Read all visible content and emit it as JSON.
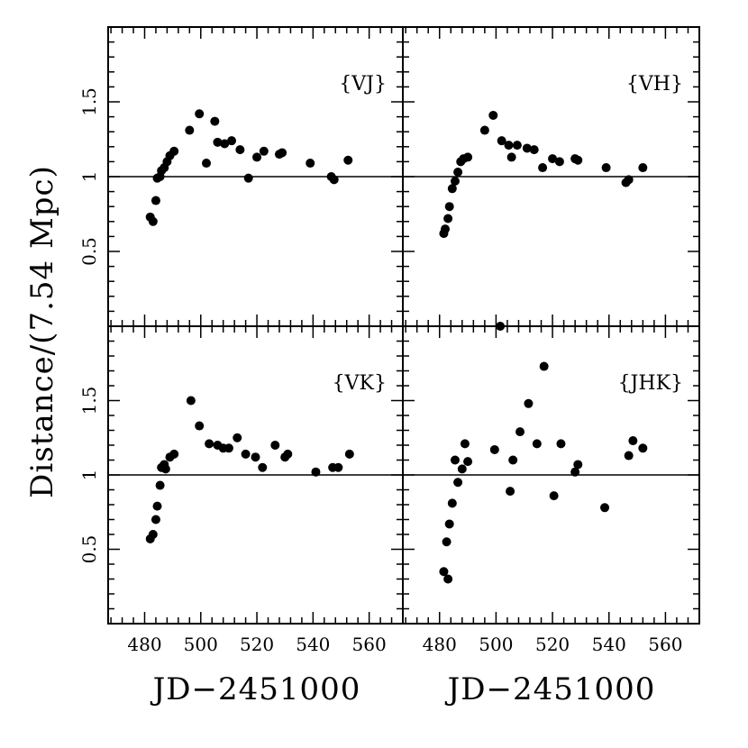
{
  "figure": {
    "ylabel": "Distance/(7.54 Mpc)",
    "xlabel": "JD−2451000"
  },
  "chart_data": [
    {
      "type": "scatter",
      "panel_label": "{VJ}",
      "xlim": [
        467,
        572
      ],
      "ylim": [
        0,
        2
      ],
      "xticks": [],
      "yticks": [
        "0.5",
        "1",
        "1.5"
      ],
      "reference_line": 1,
      "points": [
        [
          482.0,
          0.73
        ],
        [
          483.0,
          0.7
        ],
        [
          484.0,
          0.84
        ],
        [
          484.5,
          0.99
        ],
        [
          485.5,
          1.0
        ],
        [
          486.0,
          1.04
        ],
        [
          487.0,
          1.06
        ],
        [
          488.0,
          1.1
        ],
        [
          489.0,
          1.14
        ],
        [
          490.5,
          1.17
        ],
        [
          496.0,
          1.31
        ],
        [
          499.5,
          1.42
        ],
        [
          502.0,
          1.09
        ],
        [
          505.0,
          1.37
        ],
        [
          506.0,
          1.23
        ],
        [
          508.5,
          1.22
        ],
        [
          511.0,
          1.24
        ],
        [
          514.0,
          1.18
        ],
        [
          517.0,
          0.99
        ],
        [
          520.0,
          1.13
        ],
        [
          522.5,
          1.17
        ],
        [
          528.0,
          1.15
        ],
        [
          529.0,
          1.16
        ],
        [
          539.0,
          1.09
        ],
        [
          546.5,
          1.0
        ],
        [
          547.5,
          0.98
        ],
        [
          552.5,
          1.11
        ]
      ]
    },
    {
      "type": "scatter",
      "panel_label": "{VH}",
      "xlim": [
        467,
        572
      ],
      "ylim": [
        0,
        2
      ],
      "xticks": [],
      "yticks": [],
      "reference_line": 1,
      "points": [
        [
          481.5,
          0.62
        ],
        [
          482.0,
          0.65
        ],
        [
          483.0,
          0.72
        ],
        [
          483.5,
          0.8
        ],
        [
          484.5,
          0.92
        ],
        [
          485.5,
          0.97
        ],
        [
          486.5,
          1.03
        ],
        [
          487.5,
          1.1
        ],
        [
          488.5,
          1.12
        ],
        [
          490.0,
          1.13
        ],
        [
          496.0,
          1.31
        ],
        [
          499.0,
          1.41
        ],
        [
          502.0,
          1.24
        ],
        [
          504.5,
          1.21
        ],
        [
          505.5,
          1.13
        ],
        [
          507.5,
          1.21
        ],
        [
          511.0,
          1.19
        ],
        [
          513.5,
          1.18
        ],
        [
          516.5,
          1.06
        ],
        [
          520.0,
          1.12
        ],
        [
          522.5,
          1.1
        ],
        [
          528.0,
          1.12
        ],
        [
          529.0,
          1.11
        ],
        [
          539.0,
          1.06
        ],
        [
          546.0,
          0.96
        ],
        [
          547.0,
          0.98
        ],
        [
          552.0,
          1.06
        ]
      ]
    },
    {
      "type": "scatter",
      "panel_label": "{VK}",
      "xlim": [
        467,
        572
      ],
      "ylim": [
        0,
        2
      ],
      "xticks": [
        "480",
        "500",
        "520",
        "540",
        "560"
      ],
      "yticks": [
        "0.5",
        "1",
        "1.5"
      ],
      "reference_line": 1,
      "points": [
        [
          482.0,
          0.57
        ],
        [
          483.0,
          0.6
        ],
        [
          484.0,
          0.7
        ],
        [
          484.5,
          0.79
        ],
        [
          485.5,
          0.93
        ],
        [
          486.0,
          1.05
        ],
        [
          487.0,
          1.07
        ],
        [
          487.5,
          1.04
        ],
        [
          489.0,
          1.12
        ],
        [
          490.5,
          1.14
        ],
        [
          496.5,
          1.5
        ],
        [
          499.5,
          1.33
        ],
        [
          503.0,
          1.21
        ],
        [
          506.0,
          1.2
        ],
        [
          508.0,
          1.18
        ],
        [
          510.0,
          1.18
        ],
        [
          513.0,
          1.25
        ],
        [
          516.0,
          1.14
        ],
        [
          519.5,
          1.12
        ],
        [
          522.0,
          1.05
        ],
        [
          526.5,
          1.2
        ],
        [
          530.0,
          1.12
        ],
        [
          531.0,
          1.14
        ],
        [
          541.0,
          1.02
        ],
        [
          547.0,
          1.05
        ],
        [
          549.0,
          1.05
        ],
        [
          553.0,
          1.14
        ]
      ]
    },
    {
      "type": "scatter",
      "panel_label": "{JHK}",
      "xlim": [
        467,
        572
      ],
      "ylim": [
        0,
        2
      ],
      "xticks": [
        "480",
        "500",
        "520",
        "540",
        "560"
      ],
      "yticks": [],
      "reference_line": 1,
      "points": [
        [
          481.5,
          0.35
        ],
        [
          482.5,
          0.55
        ],
        [
          483.0,
          0.3
        ],
        [
          483.5,
          0.67
        ],
        [
          484.5,
          0.81
        ],
        [
          485.5,
          1.1
        ],
        [
          486.5,
          0.95
        ],
        [
          488.0,
          1.04
        ],
        [
          489.0,
          1.21
        ],
        [
          490.0,
          1.09
        ],
        [
          499.5,
          1.17
        ],
        [
          501.5,
          2.0
        ],
        [
          505.0,
          0.89
        ],
        [
          506.0,
          1.1
        ],
        [
          508.5,
          1.29
        ],
        [
          511.5,
          1.48
        ],
        [
          514.5,
          1.21
        ],
        [
          517.0,
          1.73
        ],
        [
          520.5,
          0.86
        ],
        [
          523.0,
          1.21
        ],
        [
          528.0,
          1.02
        ],
        [
          529.0,
          1.07
        ],
        [
          538.5,
          0.78
        ],
        [
          547.0,
          1.13
        ],
        [
          548.5,
          1.23
        ],
        [
          552.0,
          1.18
        ]
      ]
    }
  ]
}
